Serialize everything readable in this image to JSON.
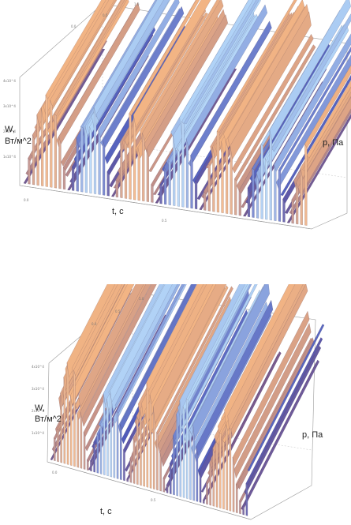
{
  "chart_data": [
    {
      "type": "surface",
      "axis_labels": {
        "x": "t, c",
        "y": "p, Па",
        "z_line1": "W,",
        "z_line2": "Вт/м^2"
      },
      "colors": {
        "high": "#f2b484",
        "mid": "#7a5b8e",
        "low": "#4d58b8",
        "highlight": "#bfe4ff"
      },
      "ticks": {
        "x": [
          "0.0",
          "0.5",
          "1.0"
        ],
        "y": [
          "0.0",
          "0.5",
          "1.0"
        ],
        "z": [
          "4x10^4",
          "3x10^4",
          "2x10^4",
          "1x10^4"
        ]
      }
    },
    {
      "type": "surface",
      "axis_labels": {
        "x": "t, c",
        "y": "p, Па",
        "z_line1": "W,",
        "z_line2": "Вт/м^2"
      },
      "colors": {
        "high": "#f2b484",
        "mid": "#7a5b8e",
        "low": "#4d58b8",
        "highlight": "#bfe4ff"
      },
      "ticks": {
        "x": [
          "0.0",
          "0.5",
          "1.0"
        ],
        "y": [
          "0.0",
          "0.5",
          "1.0"
        ],
        "z": [
          "4x10^4",
          "3x10^4",
          "2x10^4",
          "1x10^4"
        ]
      }
    }
  ]
}
